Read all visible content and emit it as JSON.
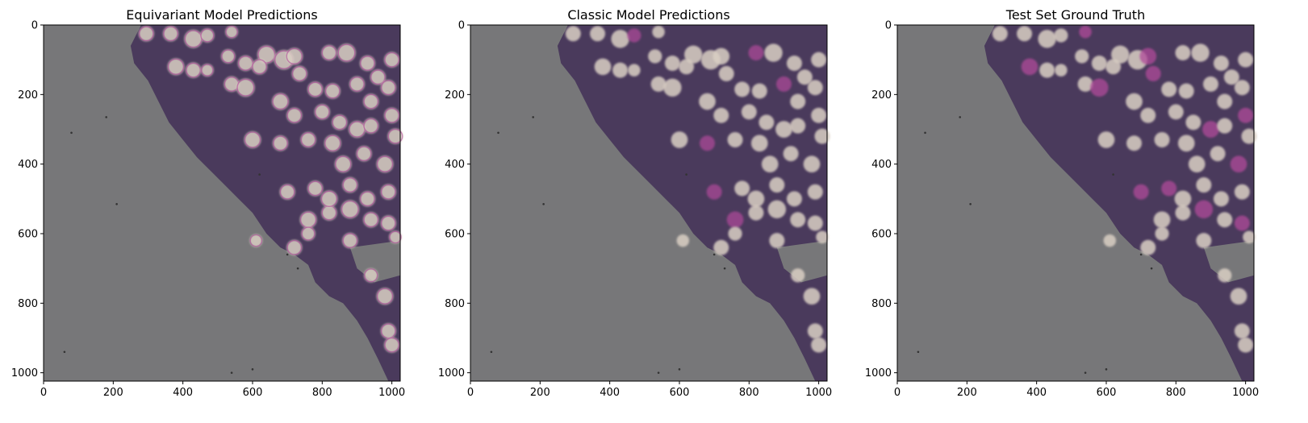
{
  "figure": {
    "panels": [
      {
        "title": "Equivariant Model Predictions",
        "variant": "equivariant",
        "x_ticks": [
          "0",
          "200",
          "400",
          "600",
          "800",
          "1000"
        ],
        "y_ticks": [
          "0",
          "200",
          "400",
          "600",
          "800",
          "1000"
        ]
      },
      {
        "title": "Classic Model Predictions",
        "variant": "classic",
        "x_ticks": [
          "0",
          "200",
          "400",
          "600",
          "800",
          "1000"
        ],
        "y_ticks": [
          "0",
          "200",
          "400",
          "600",
          "800",
          "1000"
        ]
      },
      {
        "title": "Test Set Ground Truth",
        "variant": "ground_truth",
        "x_ticks": [
          "0",
          "200",
          "400",
          "600",
          "800",
          "1000"
        ],
        "y_ticks": [
          "0",
          "200",
          "400",
          "600",
          "800",
          "1000"
        ]
      }
    ],
    "image_extent": [
      0,
      1024
    ],
    "colors": {
      "background_gray": "#777779",
      "tissue_purple": "#4a3a5c",
      "cell_cream": "#d9cfc3",
      "cell_magenta": "#b04a9a"
    }
  },
  "cells": [
    [
      295,
      25,
      22
    ],
    [
      365,
      25,
      22
    ],
    [
      430,
      40,
      26
    ],
    [
      470,
      30,
      20
    ],
    [
      540,
      20,
      18
    ],
    [
      530,
      90,
      20
    ],
    [
      580,
      110,
      22
    ],
    [
      380,
      120,
      24
    ],
    [
      430,
      130,
      22
    ],
    [
      470,
      130,
      18
    ],
    [
      640,
      85,
      26
    ],
    [
      620,
      120,
      22
    ],
    [
      690,
      100,
      28
    ],
    [
      720,
      90,
      24
    ],
    [
      820,
      80,
      22
    ],
    [
      870,
      80,
      26
    ],
    [
      930,
      110,
      22
    ],
    [
      960,
      150,
      22
    ],
    [
      1000,
      100,
      22
    ],
    [
      540,
      170,
      22
    ],
    [
      580,
      180,
      26
    ],
    [
      680,
      220,
      24
    ],
    [
      735,
      140,
      22
    ],
    [
      780,
      185,
      22
    ],
    [
      830,
      190,
      22
    ],
    [
      900,
      170,
      22
    ],
    [
      940,
      220,
      22
    ],
    [
      990,
      180,
      22
    ],
    [
      720,
      260,
      22
    ],
    [
      800,
      250,
      22
    ],
    [
      850,
      280,
      22
    ],
    [
      900,
      300,
      24
    ],
    [
      940,
      290,
      22
    ],
    [
      1000,
      260,
      22
    ],
    [
      1010,
      320,
      22
    ],
    [
      600,
      330,
      24
    ],
    [
      680,
      340,
      22
    ],
    [
      760,
      330,
      22
    ],
    [
      830,
      340,
      24
    ],
    [
      920,
      370,
      22
    ],
    [
      980,
      400,
      24
    ],
    [
      860,
      400,
      24
    ],
    [
      880,
      460,
      22
    ],
    [
      930,
      500,
      22
    ],
    [
      990,
      480,
      22
    ],
    [
      820,
      540,
      22
    ],
    [
      880,
      530,
      26
    ],
    [
      760,
      560,
      24
    ],
    [
      940,
      560,
      22
    ],
    [
      990,
      570,
      22
    ],
    [
      1010,
      610,
      18
    ],
    [
      880,
      620,
      22
    ],
    [
      720,
      640,
      22
    ],
    [
      610,
      620,
      18
    ],
    [
      940,
      720,
      20
    ],
    [
      980,
      780,
      24
    ],
    [
      990,
      880,
      22
    ],
    [
      1000,
      920,
      22
    ],
    [
      700,
      480,
      22
    ],
    [
      780,
      470,
      22
    ],
    [
      820,
      500,
      24
    ],
    [
      760,
      600,
      20
    ]
  ]
}
